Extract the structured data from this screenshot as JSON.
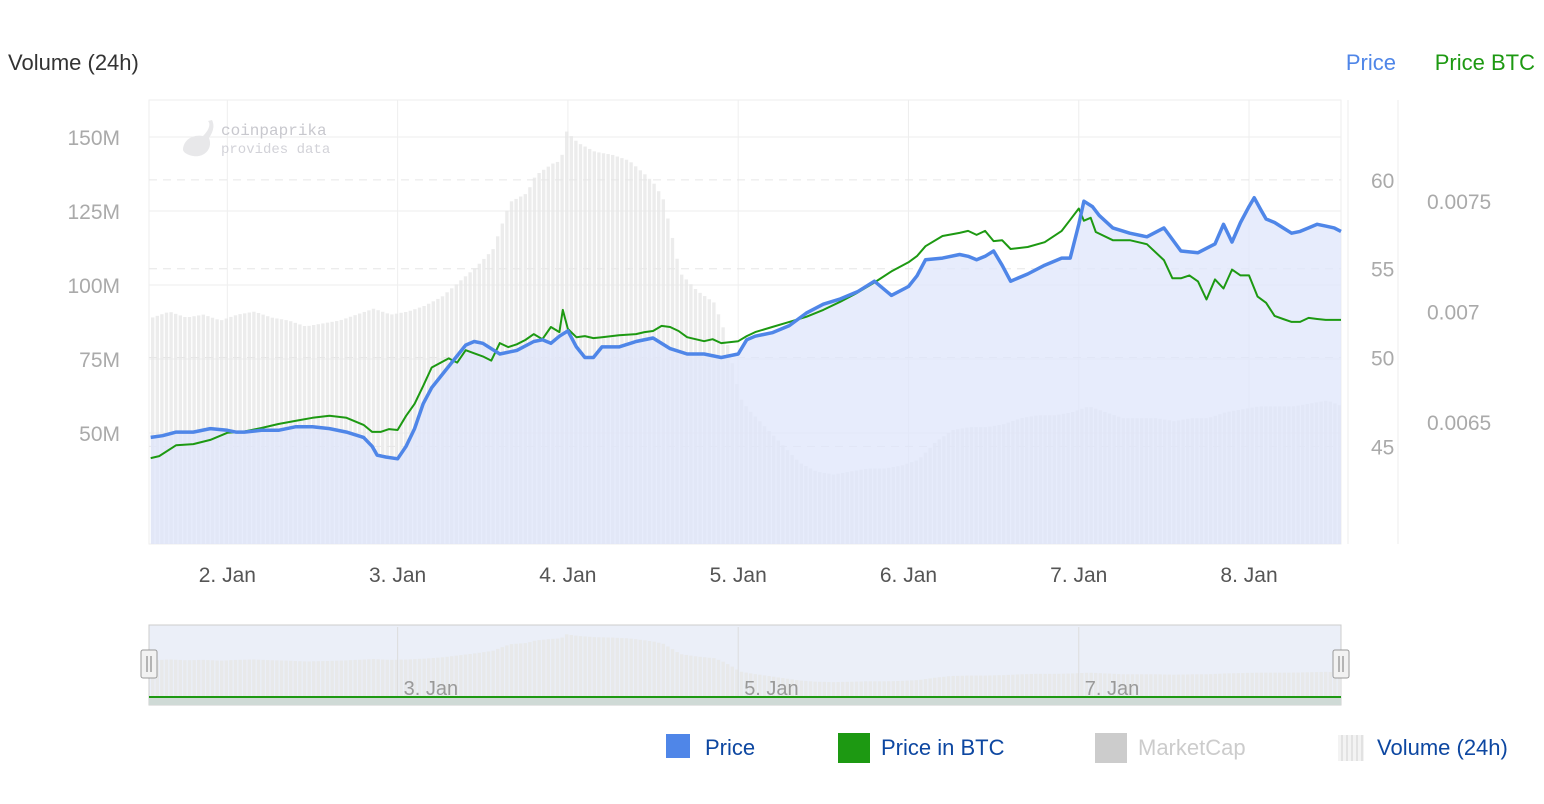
{
  "colors": {
    "price": "#4f86e8",
    "price_btc": "#1d9912",
    "volume": "#e6e6e6",
    "area_fill": "#dfe6fb",
    "marketcap": "#cccccc",
    "legend_text": "#0d47a1",
    "axis_text": "#aaaaaa",
    "grid": "#eeeeee"
  },
  "header": {
    "left_title": "Volume (24h)",
    "right_price": "Price",
    "right_price_btc": "Price BTC"
  },
  "watermark": {
    "line1": "coinpaprika",
    "line2": "provides data",
    "icon": "chili-pepper-icon"
  },
  "legend": [
    {
      "label": "Price",
      "key": "price",
      "active": true
    },
    {
      "label": "Price in BTC",
      "key": "price_btc",
      "active": true
    },
    {
      "label": "MarketCap",
      "key": "marketcap",
      "active": false
    },
    {
      "label": "Volume (24h)",
      "key": "volume",
      "active": true
    }
  ],
  "navigator": {
    "labels": [
      "3. Jan",
      "5. Jan",
      "7. Jan"
    ],
    "label_days": [
      3,
      5,
      7
    ]
  },
  "chart_data": {
    "type": "line",
    "x_ticks": [
      "2. Jan",
      "3. Jan",
      "4. Jan",
      "5. Jan",
      "6. Jan",
      "7. Jan",
      "8. Jan"
    ],
    "x_tick_days": [
      2,
      3,
      4,
      5,
      6,
      7,
      8
    ],
    "xlim": [
      1.54,
      8.54
    ],
    "axes": {
      "volume": {
        "label": "Volume (24h)",
        "ticks": [
          "50M",
          "75M",
          "100M",
          "125M",
          "150M"
        ],
        "tick_values": [
          50,
          75,
          100,
          125,
          150
        ],
        "ylim": [
          12.5,
          162.5
        ]
      },
      "price": {
        "label": "Price",
        "ticks": [
          "45",
          "50",
          "55",
          "60"
        ],
        "tick_values": [
          45,
          50,
          55,
          60
        ],
        "ylim": [
          39.5,
          64.5
        ]
      },
      "price_btc": {
        "label": "Price BTC",
        "ticks": [
          "0.0065",
          "0.007",
          "0.0075"
        ],
        "tick_values": [
          0.0065,
          0.007,
          0.0075
        ],
        "ylim": [
          0.00595,
          0.007955
        ]
      }
    },
    "series": [
      {
        "name": "Price",
        "axis": "price",
        "x": [
          1.55,
          1.62,
          1.7,
          1.8,
          1.9,
          2.0,
          2.05,
          2.1,
          2.2,
          2.3,
          2.4,
          2.5,
          2.6,
          2.7,
          2.8,
          2.85,
          2.88,
          2.93,
          3.0,
          3.05,
          3.1,
          3.15,
          3.2,
          3.3,
          3.4,
          3.45,
          3.5,
          3.6,
          3.7,
          3.8,
          3.85,
          3.9,
          3.95,
          4.0,
          4.05,
          4.1,
          4.15,
          4.2,
          4.3,
          4.4,
          4.5,
          4.6,
          4.7,
          4.8,
          4.9,
          5.0,
          5.05,
          5.1,
          5.2,
          5.3,
          5.4,
          5.5,
          5.6,
          5.7,
          5.8,
          5.9,
          6.0,
          6.05,
          6.1,
          6.2,
          6.3,
          6.35,
          6.4,
          6.45,
          6.5,
          6.55,
          6.6,
          6.7,
          6.8,
          6.9,
          6.95,
          7.0,
          7.03,
          7.08,
          7.12,
          7.2,
          7.3,
          7.4,
          7.5,
          7.6,
          7.7,
          7.8,
          7.85,
          7.9,
          7.95,
          8.0,
          8.03,
          8.07,
          8.1,
          8.15,
          8.2,
          8.25,
          8.3,
          8.35,
          8.4,
          8.45,
          8.5,
          8.54
        ],
        "values": [
          45.5,
          45.6,
          45.8,
          45.8,
          46.0,
          45.9,
          45.8,
          45.8,
          45.9,
          45.9,
          46.1,
          46.1,
          46.0,
          45.8,
          45.5,
          45.0,
          44.5,
          44.4,
          44.3,
          45.0,
          46.0,
          47.4,
          48.3,
          49.5,
          50.7,
          50.9,
          50.8,
          50.2,
          50.4,
          50.9,
          51.0,
          50.8,
          51.2,
          51.5,
          50.6,
          50.0,
          50.0,
          50.6,
          50.6,
          50.9,
          51.1,
          50.5,
          50.2,
          50.2,
          50.0,
          50.2,
          51.0,
          51.2,
          51.4,
          51.8,
          52.5,
          53.0,
          53.3,
          53.7,
          54.3,
          53.5,
          54.0,
          54.6,
          55.5,
          55.6,
          55.8,
          55.7,
          55.5,
          55.7,
          56.0,
          55.2,
          54.3,
          54.7,
          55.2,
          55.6,
          55.6,
          57.5,
          58.8,
          58.5,
          58.0,
          57.3,
          57.0,
          56.8,
          57.3,
          56.0,
          55.9,
          56.4,
          57.5,
          56.5,
          57.6,
          58.5,
          59.0,
          58.3,
          57.8,
          57.6,
          57.3,
          57.0,
          57.1,
          57.3,
          57.5,
          57.4,
          57.3,
          57.1
        ]
      },
      {
        "name": "Price in BTC",
        "axis": "price_btc",
        "x": [
          1.55,
          1.6,
          1.7,
          1.8,
          1.9,
          2.0,
          2.1,
          2.2,
          2.3,
          2.4,
          2.5,
          2.6,
          2.7,
          2.8,
          2.85,
          2.9,
          2.95,
          3.0,
          3.05,
          3.1,
          3.15,
          3.2,
          3.3,
          3.35,
          3.4,
          3.45,
          3.5,
          3.55,
          3.6,
          3.65,
          3.7,
          3.75,
          3.8,
          3.85,
          3.9,
          3.95,
          3.97,
          4.0,
          4.05,
          4.1,
          4.15,
          4.2,
          4.3,
          4.4,
          4.45,
          4.5,
          4.55,
          4.6,
          4.65,
          4.7,
          4.8,
          4.85,
          4.9,
          5.0,
          5.05,
          5.1,
          5.2,
          5.3,
          5.4,
          5.5,
          5.6,
          5.7,
          5.8,
          5.9,
          6.0,
          6.05,
          6.1,
          6.2,
          6.3,
          6.35,
          6.4,
          6.45,
          6.5,
          6.55,
          6.6,
          6.7,
          6.8,
          6.9,
          6.95,
          7.0,
          7.03,
          7.07,
          7.1,
          7.2,
          7.3,
          7.4,
          7.5,
          7.55,
          7.6,
          7.65,
          7.7,
          7.75,
          7.8,
          7.85,
          7.9,
          7.95,
          8.0,
          8.05,
          8.1,
          8.15,
          8.2,
          8.25,
          8.3,
          8.35,
          8.4,
          8.45,
          8.5,
          8.54
        ],
        "values": [
          0.006338,
          0.006347,
          0.006396,
          0.006401,
          0.00642,
          0.006452,
          0.006458,
          0.006474,
          0.006492,
          0.006506,
          0.00652,
          0.006529,
          0.00652,
          0.006488,
          0.006456,
          0.006456,
          0.006469,
          0.006465,
          0.006529,
          0.006583,
          0.006664,
          0.006747,
          0.006788,
          0.006769,
          0.006825,
          0.006811,
          0.006797,
          0.006778,
          0.006857,
          0.006839,
          0.006852,
          0.006871,
          0.006898,
          0.006875,
          0.00693,
          0.006907,
          0.007007,
          0.006921,
          0.006884,
          0.006889,
          0.00688,
          0.006884,
          0.006893,
          0.006898,
          0.006907,
          0.006912,
          0.006935,
          0.00693,
          0.006912,
          0.006884,
          0.006866,
          0.006875,
          0.006857,
          0.006866,
          0.006889,
          0.006907,
          0.00693,
          0.006953,
          0.006976,
          0.007007,
          0.007044,
          0.007085,
          0.007131,
          0.007181,
          0.007222,
          0.00725,
          0.007295,
          0.007341,
          0.007355,
          0.007364,
          0.007346,
          0.007364,
          0.007318,
          0.007322,
          0.007282,
          0.007291,
          0.007313,
          0.007364,
          0.007414,
          0.007465,
          0.00741,
          0.007423,
          0.007359,
          0.007322,
          0.007322,
          0.007304,
          0.007232,
          0.00715,
          0.00715,
          0.007163,
          0.007136,
          0.007054,
          0.007145,
          0.007104,
          0.007189,
          0.007163,
          0.007163,
          0.007067,
          0.007039,
          0.00698,
          0.006966,
          0.006953,
          0.006953,
          0.006971,
          0.006966,
          0.006962,
          0.006962,
          0.006962
        ]
      },
      {
        "name": "Volume (24h)",
        "axis": "volume",
        "x": [
          1.55,
          1.65,
          1.75,
          1.85,
          1.95,
          2.05,
          2.15,
          2.25,
          2.35,
          2.45,
          2.55,
          2.65,
          2.75,
          2.85,
          2.95,
          3.05,
          3.15,
          3.25,
          3.35,
          3.45,
          3.55,
          3.6,
          3.65,
          3.75,
          3.8,
          3.85,
          3.9,
          3.95,
          3.98,
          4.05,
          4.15,
          4.25,
          4.35,
          4.45,
          4.5,
          4.55,
          4.6,
          4.65,
          4.75,
          4.85,
          4.9,
          4.95,
          5.0,
          5.05,
          5.15,
          5.25,
          5.35,
          5.45,
          5.55,
          5.65,
          5.75,
          5.85,
          5.95,
          6.05,
          6.15,
          6.25,
          6.35,
          6.45,
          6.55,
          6.65,
          6.75,
          6.85,
          6.95,
          7.0,
          7.05,
          7.15,
          7.25,
          7.35,
          7.45,
          7.55,
          7.65,
          7.75,
          7.85,
          7.95,
          8.05,
          8.15,
          8.25,
          8.35,
          8.45,
          8.54
        ],
        "values": [
          89,
          91,
          89,
          90,
          88,
          90,
          91,
          89,
          88,
          86,
          87,
          88,
          90,
          92,
          90,
          91,
          93,
          96,
          101,
          106,
          112,
          120,
          128,
          131,
          137,
          139,
          141,
          142,
          152,
          148,
          145,
          144,
          142,
          137,
          134,
          129,
          117,
          104,
          98,
          94,
          86,
          75,
          62,
          58,
          52,
          46,
          40,
          37,
          36,
          37,
          38,
          38,
          39,
          41,
          47,
          51,
          52,
          52,
          53,
          55,
          56,
          56,
          57,
          58,
          59,
          57,
          55,
          55,
          55,
          54,
          55,
          55,
          57,
          58,
          59,
          59,
          59,
          60,
          61,
          59
        ]
      }
    ],
    "marketcap_visible": false,
    "grid": true,
    "legend_position": "bottom-right"
  }
}
